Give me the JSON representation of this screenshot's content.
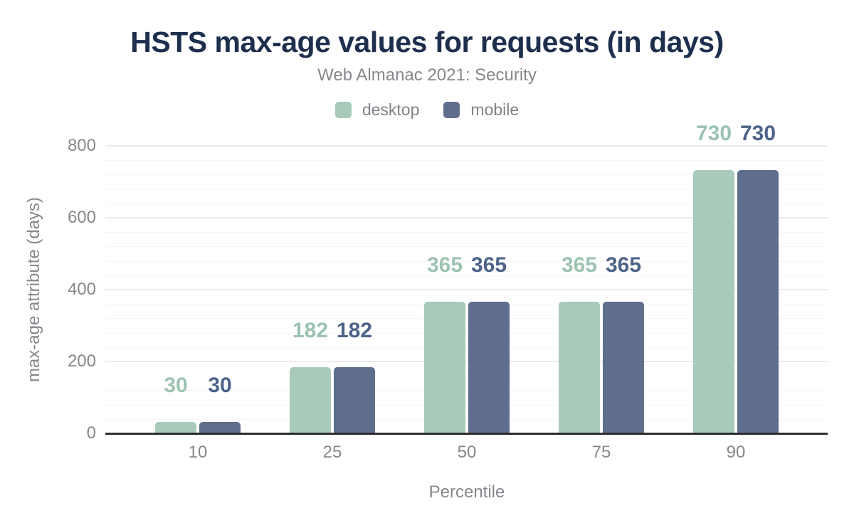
{
  "header": {
    "title": "HSTS max-age values for requests (in days)",
    "subtitle": "Web Almanac 2021: Security"
  },
  "colors": {
    "title_navy": "#1e2f4e",
    "muted_gray": "#85888c",
    "axis_line": "#2e2e2e",
    "major_grid": "#ebebeb",
    "minor_grid": "#f6f6f6",
    "desktop_green": "#a8cabb",
    "desktop_label_green": "#9cc3b1",
    "mobile_blue": "#5f6e8d",
    "mobile_label_blue": "#4d6289"
  },
  "chart_data": {
    "type": "bar",
    "title": "HSTS max-age values for requests (in days)",
    "subtitle": "Web Almanac 2021: Security",
    "categories": [
      "10",
      "25",
      "50",
      "75",
      "90"
    ],
    "series": [
      {
        "name": "desktop",
        "color": "#a8cabb",
        "label_color": "#9cc3b1",
        "values": [
          30,
          182,
          365,
          365,
          730
        ]
      },
      {
        "name": "mobile",
        "color": "#5f6e8d",
        "label_color": "#4d6289",
        "values": [
          30,
          182,
          365,
          365,
          730
        ]
      }
    ],
    "xlabel": "Percentile",
    "ylabel": "max-age attribute (days)",
    "ylim": [
      0,
      800
    ],
    "yticks": [
      0,
      200,
      400,
      600,
      800
    ],
    "minor_grid_step": 40,
    "grid": true,
    "legend_position": "top",
    "value_labels_shown": true
  }
}
